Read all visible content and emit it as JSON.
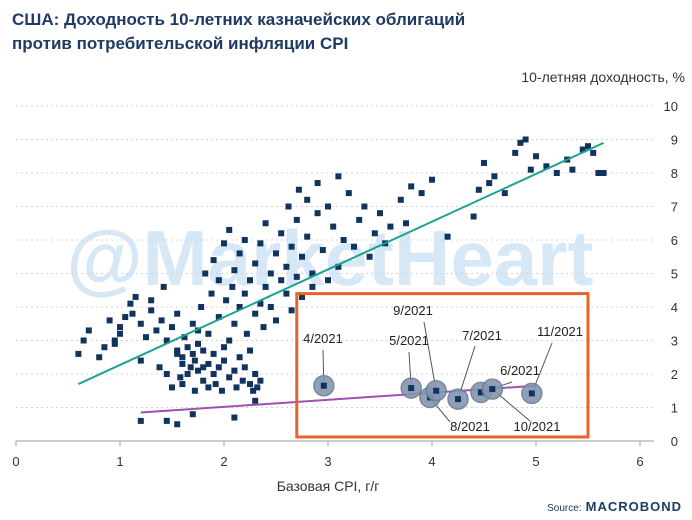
{
  "title": {
    "line1": "США: Доходность 10-летних казначейских облигаций",
    "line2": "против потребительской инфляции CPI"
  },
  "watermark": "@MarketHeart",
  "source": {
    "prefix": "Source:",
    "brand": "MACROBOND"
  },
  "colors": {
    "points": "#10345e",
    "green_line": "#1aa38f",
    "purple_line": "#a050b0",
    "highlight_box": "#e8632a",
    "circle_fill": "#8396b0",
    "title": "#1f3b63"
  },
  "chart_data": {
    "type": "scatter",
    "xlabel": "Базовая CPI, г/г",
    "ylabel": "10-летняя доходность, %",
    "xlim": [
      0,
      6
    ],
    "ylim": [
      0,
      10
    ],
    "x_ticks": [
      "0",
      "1",
      "2",
      "3",
      "4",
      "5",
      "6"
    ],
    "y_ticks": [
      "0",
      "1",
      "2",
      "3",
      "4",
      "5",
      "6",
      "7",
      "8",
      "9",
      "10"
    ],
    "grid": "horizontal",
    "y_axis_position": "right",
    "historical_points": [
      [
        0.6,
        2.6
      ],
      [
        0.65,
        3.0
      ],
      [
        0.7,
        3.3
      ],
      [
        0.8,
        2.5
      ],
      [
        0.85,
        2.8
      ],
      [
        0.9,
        3.6
      ],
      [
        0.95,
        3.0
      ],
      [
        0.95,
        2.9
      ],
      [
        1.0,
        3.2
      ],
      [
        1.0,
        3.4
      ],
      [
        1.05,
        3.7
      ],
      [
        1.1,
        4.1
      ],
      [
        1.12,
        3.8
      ],
      [
        1.15,
        4.3
      ],
      [
        1.2,
        3.5
      ],
      [
        1.2,
        2.4
      ],
      [
        1.25,
        3.1
      ],
      [
        1.3,
        3.9
      ],
      [
        1.3,
        4.2
      ],
      [
        1.35,
        3.3
      ],
      [
        1.38,
        2.2
      ],
      [
        1.4,
        3.6
      ],
      [
        1.42,
        4.6
      ],
      [
        1.45,
        3.0
      ],
      [
        1.45,
        2.0
      ],
      [
        1.5,
        3.4
      ],
      [
        1.5,
        1.6
      ],
      [
        1.55,
        2.6
      ],
      [
        1.55,
        2.7
      ],
      [
        1.55,
        3.8
      ],
      [
        1.58,
        1.9
      ],
      [
        1.6,
        2.5
      ],
      [
        1.6,
        2.3
      ],
      [
        1.6,
        1.7
      ],
      [
        1.62,
        3.1
      ],
      [
        1.65,
        2.0
      ],
      [
        1.65,
        2.8
      ],
      [
        1.68,
        2.2
      ],
      [
        1.7,
        2.6
      ],
      [
        1.7,
        3.5
      ],
      [
        1.72,
        1.5
      ],
      [
        1.72,
        2.4
      ],
      [
        1.75,
        2.1
      ],
      [
        1.75,
        2.9
      ],
      [
        1.75,
        3.3
      ],
      [
        1.78,
        4.0
      ],
      [
        1.8,
        1.8
      ],
      [
        1.8,
        2.2
      ],
      [
        1.8,
        2.7
      ],
      [
        1.82,
        5.0
      ],
      [
        1.85,
        1.6
      ],
      [
        1.85,
        2.3
      ],
      [
        1.85,
        3.2
      ],
      [
        1.88,
        4.4
      ],
      [
        1.9,
        2.0
      ],
      [
        1.9,
        2.6
      ],
      [
        1.9,
        5.4
      ],
      [
        1.92,
        1.7
      ],
      [
        1.95,
        2.2
      ],
      [
        1.95,
        3.7
      ],
      [
        1.95,
        4.8
      ],
      [
        1.98,
        1.5
      ],
      [
        2.0,
        2.4
      ],
      [
        2.0,
        2.8
      ],
      [
        2.0,
        5.9
      ],
      [
        2.02,
        4.2
      ],
      [
        2.05,
        3.0
      ],
      [
        2.05,
        1.9
      ],
      [
        2.05,
        6.3
      ],
      [
        2.08,
        4.6
      ],
      [
        2.1,
        2.1
      ],
      [
        2.1,
        5.1
      ],
      [
        2.1,
        3.5
      ],
      [
        2.12,
        1.6
      ],
      [
        2.15,
        2.5
      ],
      [
        2.15,
        4.0
      ],
      [
        2.15,
        5.6
      ],
      [
        2.18,
        1.8
      ],
      [
        2.2,
        2.2
      ],
      [
        2.2,
        4.4
      ],
      [
        2.2,
        6.0
      ],
      [
        2.22,
        3.2
      ],
      [
        2.25,
        1.7
      ],
      [
        2.25,
        2.7
      ],
      [
        2.25,
        4.8
      ],
      [
        2.28,
        1.5
      ],
      [
        2.3,
        2.0
      ],
      [
        2.3,
        3.8
      ],
      [
        2.3,
        5.3
      ],
      [
        2.32,
        1.6
      ],
      [
        2.35,
        1.8
      ],
      [
        2.35,
        4.1
      ],
      [
        2.35,
        5.9
      ],
      [
        2.38,
        3.4
      ],
      [
        2.4,
        4.6
      ],
      [
        2.4,
        6.5
      ],
      [
        2.45,
        4.0
      ],
      [
        2.45,
        5.0
      ],
      [
        2.5,
        5.6
      ],
      [
        2.5,
        3.6
      ],
      [
        2.55,
        4.8
      ],
      [
        2.55,
        6.2
      ],
      [
        2.6,
        4.4
      ],
      [
        2.6,
        5.2
      ],
      [
        2.62,
        7.0
      ],
      [
        2.65,
        3.9
      ],
      [
        2.65,
        5.8
      ],
      [
        2.7,
        4.9
      ],
      [
        2.7,
        6.6
      ],
      [
        2.72,
        7.5
      ],
      [
        2.75,
        5.5
      ],
      [
        2.75,
        4.3
      ],
      [
        2.8,
        6.1
      ],
      [
        2.8,
        7.2
      ],
      [
        2.85,
        5.0
      ],
      [
        2.85,
        4.6
      ],
      [
        2.9,
        6.8
      ],
      [
        2.9,
        7.7
      ],
      [
        2.95,
        5.7
      ],
      [
        3.0,
        4.8
      ],
      [
        3.0,
        7.0
      ],
      [
        3.05,
        6.4
      ],
      [
        3.1,
        7.9
      ],
      [
        3.1,
        5.2
      ],
      [
        3.15,
        6.0
      ],
      [
        3.2,
        7.4
      ],
      [
        3.25,
        5.8
      ],
      [
        3.3,
        6.6
      ],
      [
        3.35,
        7.0
      ],
      [
        3.4,
        5.5
      ],
      [
        3.45,
        6.2
      ],
      [
        3.5,
        6.8
      ],
      [
        3.55,
        5.9
      ],
      [
        3.6,
        6.4
      ],
      [
        3.7,
        7.2
      ],
      [
        3.75,
        6.5
      ],
      [
        3.8,
        7.6
      ],
      [
        3.9,
        7.4
      ],
      [
        4.0,
        7.8
      ],
      [
        4.15,
        6.1
      ],
      [
        4.4,
        6.7
      ],
      [
        4.45,
        7.5
      ],
      [
        4.5,
        8.3
      ],
      [
        4.55,
        7.7
      ],
      [
        4.6,
        7.9
      ],
      [
        4.7,
        7.4
      ],
      [
        4.8,
        8.6
      ],
      [
        4.85,
        8.9
      ],
      [
        4.9,
        9.0
      ],
      [
        4.95,
        8.1
      ],
      [
        5.0,
        8.5
      ],
      [
        5.1,
        8.2
      ],
      [
        5.2,
        8.0
      ],
      [
        5.3,
        8.4
      ],
      [
        5.35,
        8.1
      ],
      [
        5.45,
        8.7
      ],
      [
        5.5,
        8.8
      ],
      [
        5.6,
        8.0
      ],
      [
        5.65,
        8.0
      ],
      [
        5.55,
        8.6
      ],
      [
        1.2,
        0.6
      ],
      [
        1.45,
        0.6
      ],
      [
        1.55,
        0.5
      ],
      [
        1.7,
        0.8
      ],
      [
        2.1,
        0.7
      ],
      [
        2.3,
        1.2
      ]
    ],
    "trendlines": [
      {
        "name": "",
        "x": [
          0.6,
          5.65
        ],
        "y": [
          1.7,
          8.9
        ]
      },
      {
        "name": "",
        "x": [
          1.2,
          5.0
        ],
        "y": [
          0.85,
          1.65
        ]
      }
    ],
    "highlighted_2021": [
      {
        "label": "4/2021",
        "x": 2.96,
        "y": 1.65
      },
      {
        "label": "5/2021",
        "x": 3.8,
        "y": 1.58
      },
      {
        "label": "6/2021",
        "x": 4.47,
        "y": 1.45
      },
      {
        "label": "7/2021",
        "x": 4.25,
        "y": 1.25
      },
      {
        "label": "8/2021",
        "x": 3.98,
        "y": 1.3
      },
      {
        "label": "9/2021",
        "x": 4.04,
        "y": 1.5
      },
      {
        "label": "10/2021",
        "x": 4.58,
        "y": 1.55
      },
      {
        "label": "11/2021",
        "x": 4.96,
        "y": 1.42
      }
    ],
    "highlight_box": {
      "x": [
        2.7,
        5.5
      ],
      "y": [
        0.12,
        4.4
      ]
    }
  }
}
